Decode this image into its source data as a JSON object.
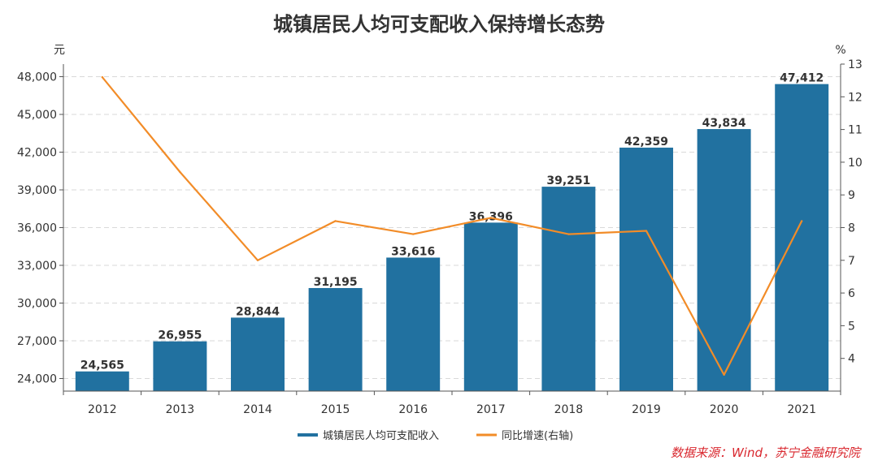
{
  "chart_data": {
    "type": "bar",
    "title": "城镇居民人均可支配收入保持增长态势",
    "left_unit": "元",
    "right_unit": "%",
    "categories": [
      "2012",
      "2013",
      "2014",
      "2015",
      "2016",
      "2017",
      "2018",
      "2019",
      "2020",
      "2021"
    ],
    "series": [
      {
        "name": "城镇居民人均可支配收入",
        "kind": "bar",
        "axis": "left",
        "color": "#2171a0",
        "values": [
          24565,
          26955,
          28844,
          31195,
          33616,
          36396,
          39251,
          42359,
          43834,
          47412
        ],
        "labels": [
          "24,565",
          "26,955",
          "28,844",
          "31,195",
          "33,616",
          "36,396",
          "39,251",
          "42,359",
          "43,834",
          "47,412"
        ]
      },
      {
        "name": "同比增速(右轴)",
        "kind": "line",
        "axis": "right",
        "color": "#f28c28",
        "values": [
          12.6,
          9.7,
          7.0,
          8.2,
          7.8,
          8.3,
          7.8,
          7.9,
          3.5,
          8.2
        ]
      }
    ],
    "ylim_left": [
      23000,
      49000
    ],
    "yticks_left": [
      24000,
      27000,
      30000,
      33000,
      36000,
      39000,
      42000,
      45000,
      48000
    ],
    "ytick_labels_left": [
      "24,000",
      "27,000",
      "30,000",
      "33,000",
      "36,000",
      "39,000",
      "42,000",
      "45,000",
      "48,000"
    ],
    "ylim_right": [
      3.0,
      13.0
    ],
    "yticks_right": [
      4,
      5,
      6,
      7,
      8,
      9,
      10,
      11,
      12,
      13
    ],
    "ytick_labels_right": [
      "4",
      "5",
      "6",
      "7",
      "8",
      "9",
      "10",
      "11",
      "12",
      "13"
    ],
    "grid": true,
    "legend_position": "bottom",
    "source": "数据来源：Wind，苏宁金融研究院"
  }
}
